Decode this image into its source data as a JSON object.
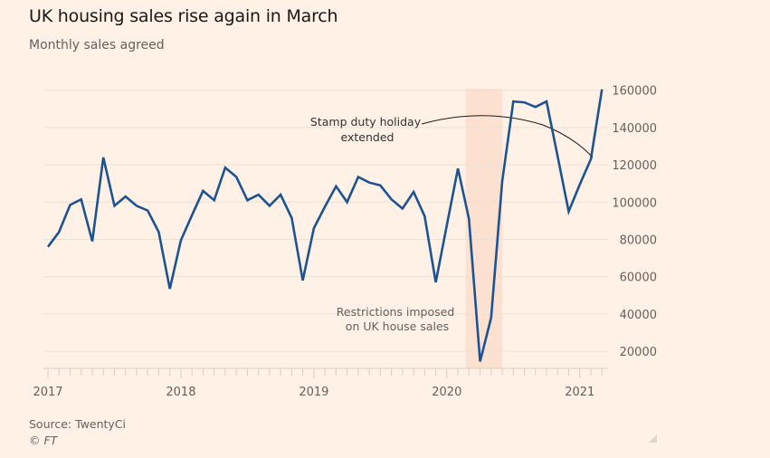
{
  "header": {
    "title": "UK housing sales rise again in March",
    "subtitle": "Monthly sales agreed"
  },
  "footer": {
    "source": "Source: TwentyCi",
    "copyright": "© FT"
  },
  "colors": {
    "background": "#fff1e5",
    "line": "#1d5393",
    "band": "#fde1d0",
    "grid": "#ece1d5",
    "text": "#66605c"
  },
  "chart_data": {
    "type": "line",
    "title": "UK housing sales rise again in March",
    "subtitle": "Monthly sales agreed",
    "xlabel": "",
    "ylabel": "",
    "y_axis_side": "right",
    "ylim": [
      10000,
      160000
    ],
    "yticks": [
      20000,
      40000,
      60000,
      80000,
      100000,
      120000,
      140000,
      160000
    ],
    "ytick_labels": [
      "20000",
      "40000",
      "60000",
      "80000",
      "100000",
      "120000",
      "140000",
      "160000"
    ],
    "xticks": [
      "2017",
      "2018",
      "2019",
      "2020",
      "2021"
    ],
    "grid": true,
    "x": [
      "2017-01",
      "2017-02",
      "2017-03",
      "2017-04",
      "2017-05",
      "2017-06",
      "2017-07",
      "2017-08",
      "2017-09",
      "2017-10",
      "2017-11",
      "2017-12",
      "2018-01",
      "2018-02",
      "2018-03",
      "2018-04",
      "2018-05",
      "2018-06",
      "2018-07",
      "2018-08",
      "2018-09",
      "2018-10",
      "2018-11",
      "2018-12",
      "2019-01",
      "2019-02",
      "2019-03",
      "2019-04",
      "2019-05",
      "2019-06",
      "2019-07",
      "2019-08",
      "2019-09",
      "2019-10",
      "2019-11",
      "2019-12",
      "2020-01",
      "2020-02",
      "2020-03",
      "2020-04",
      "2020-05",
      "2020-06",
      "2020-07",
      "2020-08",
      "2020-09",
      "2020-10",
      "2020-11",
      "2020-12",
      "2021-01",
      "2021-02",
      "2021-03"
    ],
    "series": [
      {
        "name": "Monthly sales agreed",
        "values": [
          76000,
          84000,
          98500,
          101500,
          79000,
          124000,
          98000,
          103000,
          98000,
          95500,
          84000,
          53500,
          79500,
          93000,
          106000,
          101000,
          118500,
          113500,
          101000,
          104000,
          98000,
          104000,
          91500,
          58000,
          86000,
          97500,
          108500,
          100000,
          113500,
          110500,
          109000,
          101500,
          96500,
          105500,
          92500,
          57000,
          87500,
          118000,
          91000,
          14500,
          38000,
          111000,
          154000,
          153500,
          151000,
          154000,
          124500,
          95000,
          109500,
          123000,
          160500
        ]
      }
    ],
    "shaded_band": {
      "start": "2020-03",
      "end": "2020-06"
    },
    "annotations": [
      {
        "text_lines": [
          "Stamp duty holiday",
          "extended"
        ],
        "points_to": "2021-02"
      },
      {
        "text_lines": [
          "Restrictions imposed",
          "on UK house sales"
        ],
        "refers_to": "shaded_band"
      }
    ]
  }
}
